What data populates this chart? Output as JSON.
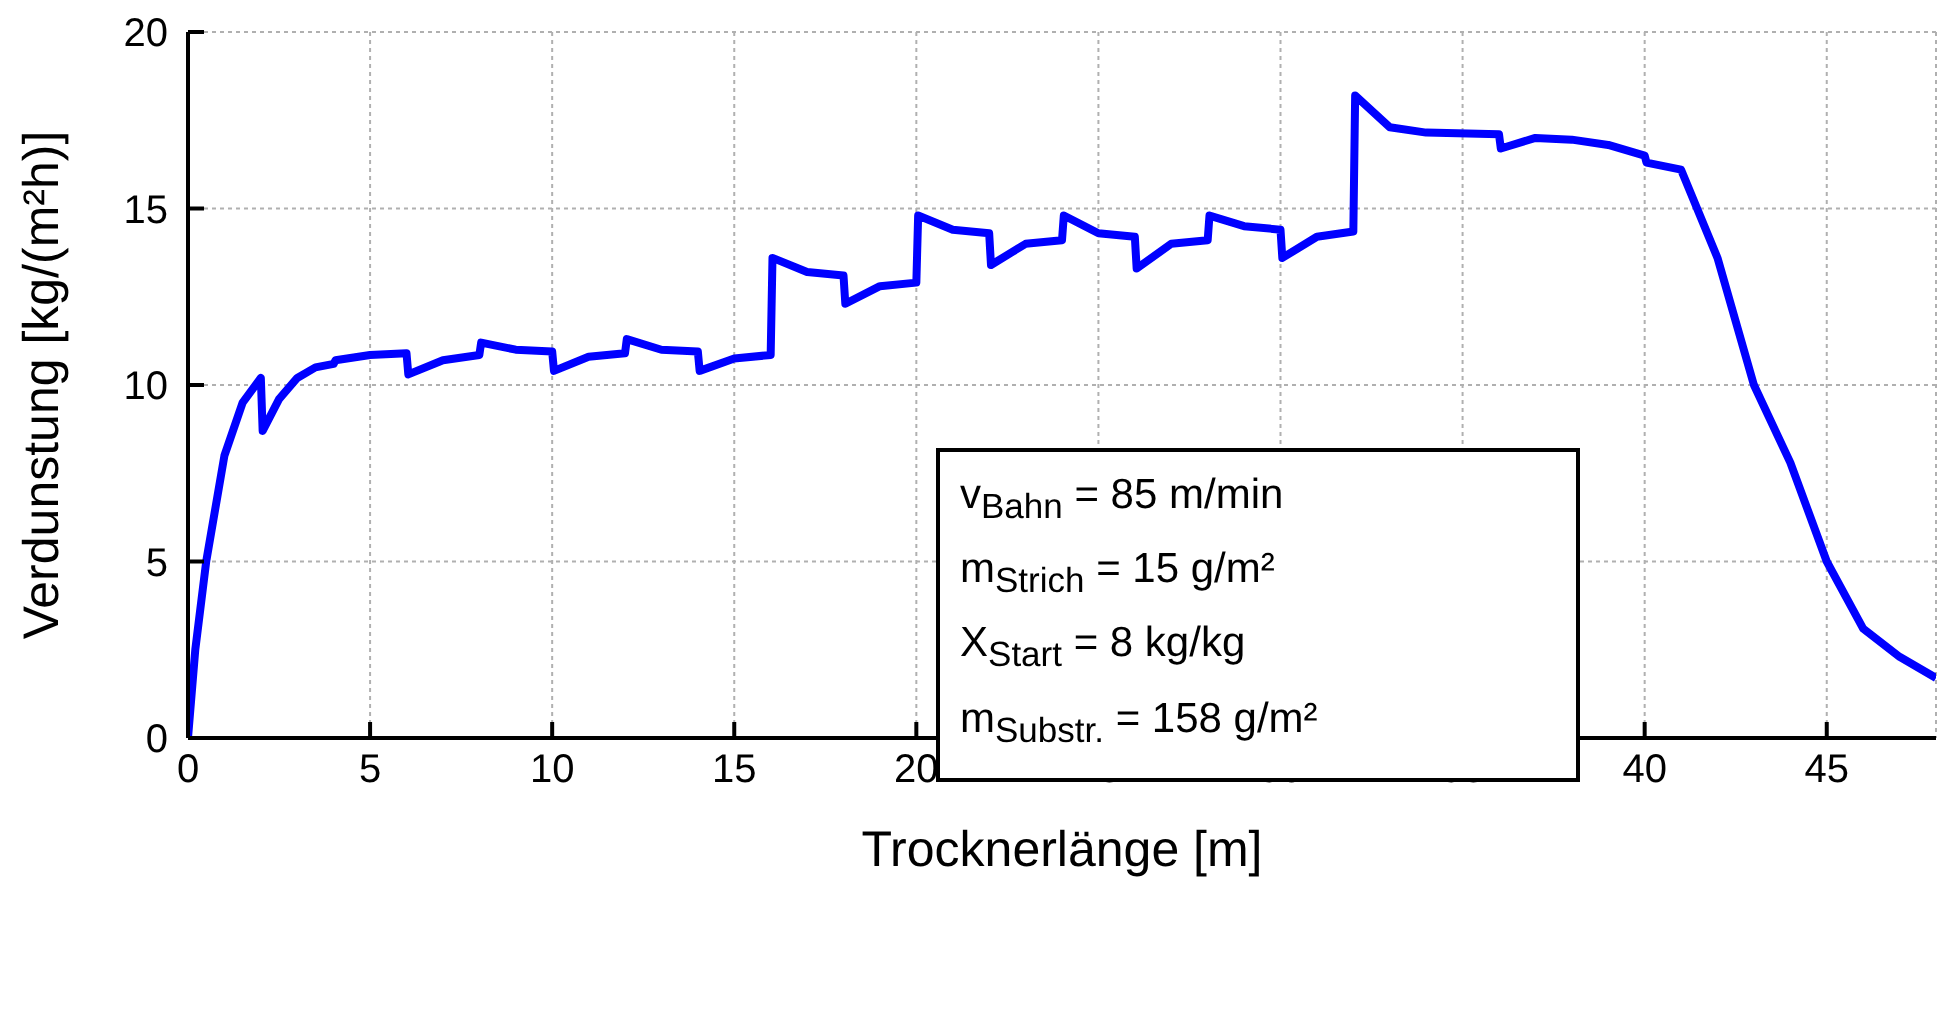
{
  "chart_data": {
    "type": "line",
    "xlabel": "Trocknerlänge [m]",
    "ylabel": "Verdunstung [kg/(m²h)]",
    "xlim": [
      0,
      48
    ],
    "ylim": [
      0,
      20
    ],
    "xticks": [
      0,
      5,
      10,
      15,
      20,
      25,
      30,
      35,
      40,
      45
    ],
    "yticks": [
      0,
      5,
      10,
      15,
      20
    ],
    "grid": true,
    "marker": "none",
    "line_style": "solid",
    "annotations": [
      "v$_{Bahn}$ = 85 m/min",
      "m$_{Strich}$ = 15 g/m²",
      "X$_{Start}$ = 8 kg/kg",
      "m$_{Substr.}$ = 158 g/m²"
    ],
    "series": [
      {
        "color": "#0000ff",
        "x": [
          0,
          0.2,
          0.5,
          1,
          1.5,
          2,
          2.05,
          2.5,
          3,
          3.5,
          4,
          4.05,
          5,
          6,
          6.05,
          7,
          8,
          8.05,
          9,
          10,
          10.05,
          11,
          12,
          12.05,
          13,
          14,
          14.05,
          15,
          16,
          16.05,
          17,
          18,
          18.05,
          19,
          20,
          20.05,
          21,
          22,
          22.05,
          23,
          24,
          24.05,
          25,
          26,
          26.05,
          27,
          28,
          28.05,
          29,
          30,
          30.05,
          31,
          32,
          32.05,
          33,
          34,
          36,
          36.05,
          37,
          38,
          39,
          40,
          40.05,
          41,
          42,
          43,
          44,
          45,
          46,
          47,
          48
        ],
        "values": [
          0,
          2.5,
          5,
          8,
          9.5,
          10.2,
          8.7,
          9.6,
          10.2,
          10.5,
          10.6,
          10.7,
          10.85,
          10.9,
          10.3,
          10.7,
          10.85,
          11.2,
          11,
          10.95,
          10.4,
          10.8,
          10.9,
          11.3,
          11,
          10.95,
          10.4,
          10.75,
          10.85,
          13.6,
          13.2,
          13.1,
          12.3,
          12.8,
          12.9,
          14.8,
          14.4,
          14.3,
          13.4,
          14,
          14.1,
          14.8,
          14.3,
          14.2,
          13.3,
          14,
          14.1,
          14.8,
          14.5,
          14.4,
          13.6,
          14.2,
          14.35,
          18.2,
          17.3,
          17.15,
          17.1,
          16.7,
          17,
          16.95,
          16.8,
          16.5,
          16.3,
          16.1,
          13.6,
          10,
          7.8,
          5,
          3.1,
          2.3,
          1.7
        ]
      }
    ]
  }
}
